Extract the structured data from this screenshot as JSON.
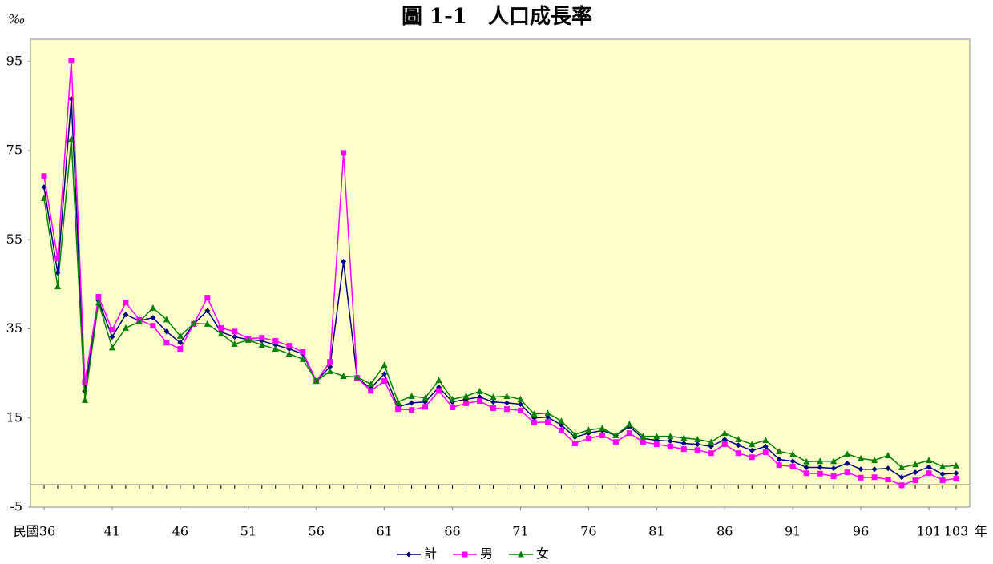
{
  "chart_data": {
    "type": "line",
    "title": "圖 1-1　人口成長率",
    "y_label": "‰",
    "x_label": "年",
    "x": [
      36,
      37,
      38,
      39,
      40,
      41,
      42,
      43,
      44,
      45,
      46,
      47,
      48,
      49,
      50,
      51,
      52,
      53,
      54,
      55,
      56,
      57,
      58,
      59,
      60,
      61,
      62,
      63,
      64,
      65,
      66,
      67,
      68,
      69,
      70,
      71,
      72,
      73,
      74,
      75,
      76,
      77,
      78,
      79,
      80,
      81,
      82,
      83,
      84,
      85,
      86,
      87,
      88,
      89,
      90,
      91,
      92,
      93,
      94,
      95,
      96,
      97,
      98,
      99,
      100,
      101,
      102,
      103
    ],
    "series": [
      {
        "name": "計",
        "color": "#000080",
        "marker": "diamond",
        "values": [
          66.8,
          47.6,
          86.6,
          21.0,
          41.3,
          33.2,
          38.2,
          36.8,
          37.5,
          34.4,
          31.9,
          36.1,
          39.1,
          34.3,
          33.2,
          32.6,
          32.3,
          31.4,
          30.5,
          29.4,
          23.3,
          26.5,
          50.1,
          24.0,
          21.7,
          24.9,
          17.5,
          18.4,
          18.6,
          21.9,
          18.6,
          19.2,
          19.7,
          18.6,
          18.4,
          18.1,
          15.0,
          15.2,
          13.4,
          10.7,
          11.6,
          12.2,
          11.1,
          13.1,
          10.4,
          10.0,
          9.8,
          9.3,
          9.1,
          8.6,
          10.2,
          8.9,
          7.7,
          8.6,
          5.7,
          5.3,
          3.9,
          3.9,
          3.7,
          4.8,
          3.5,
          3.5,
          3.7,
          1.7,
          2.8,
          4.0,
          2.4,
          2.6
        ]
      },
      {
        "name": "男",
        "color": "#ff00ff",
        "marker": "square",
        "values": [
          69.3,
          50.8,
          95.2,
          23.1,
          42.2,
          34.8,
          40.9,
          37.0,
          35.7,
          31.9,
          30.5,
          36.1,
          42.0,
          35.2,
          34.4,
          32.8,
          33.0,
          32.3,
          31.2,
          29.8,
          23.3,
          27.6,
          74.5,
          24.0,
          21.1,
          23.3,
          17.0,
          16.8,
          17.5,
          21.1,
          17.4,
          18.3,
          18.8,
          17.2,
          17.0,
          16.7,
          14.0,
          14.1,
          12.2,
          9.3,
          10.4,
          11.1,
          9.6,
          11.6,
          9.6,
          9.1,
          8.6,
          8.0,
          7.8,
          7.1,
          9.1,
          7.1,
          6.2,
          7.3,
          4.4,
          4.1,
          2.6,
          2.5,
          1.9,
          2.8,
          1.6,
          1.7,
          1.2,
          -0.1,
          1.0,
          2.6,
          1.0,
          1.4
        ]
      },
      {
        "name": "女",
        "color": "#008000",
        "marker": "triangle",
        "values": [
          64.3,
          44.5,
          77.6,
          19.0,
          40.9,
          30.8,
          35.2,
          36.6,
          39.7,
          37.1,
          33.4,
          36.2,
          36.1,
          33.9,
          31.6,
          32.5,
          31.4,
          30.5,
          29.4,
          28.2,
          23.3,
          25.5,
          24.4,
          24.2,
          22.6,
          26.9,
          18.6,
          19.9,
          19.5,
          23.5,
          19.2,
          19.9,
          21.0,
          19.7,
          19.9,
          19.2,
          15.9,
          16.1,
          14.3,
          11.3,
          12.3,
          12.7,
          11.1,
          13.6,
          10.9,
          10.9,
          10.9,
          10.5,
          10.2,
          9.6,
          11.6,
          10.2,
          9.1,
          10.0,
          7.5,
          6.9,
          5.2,
          5.3,
          5.3,
          6.9,
          5.9,
          5.5,
          6.6,
          3.9,
          4.6,
          5.5,
          4.1,
          4.3
        ]
      }
    ],
    "xlim": [
      35,
      104
    ],
    "xticks": [
      {
        "value": 36,
        "label": "民國36"
      },
      41,
      46,
      51,
      56,
      61,
      66,
      71,
      76,
      81,
      86,
      91,
      96,
      101,
      103
    ],
    "ylim": [
      -5,
      100
    ],
    "yticks": [
      -5,
      15,
      35,
      55,
      75,
      95
    ],
    "plot_background": "#ffffcc"
  }
}
